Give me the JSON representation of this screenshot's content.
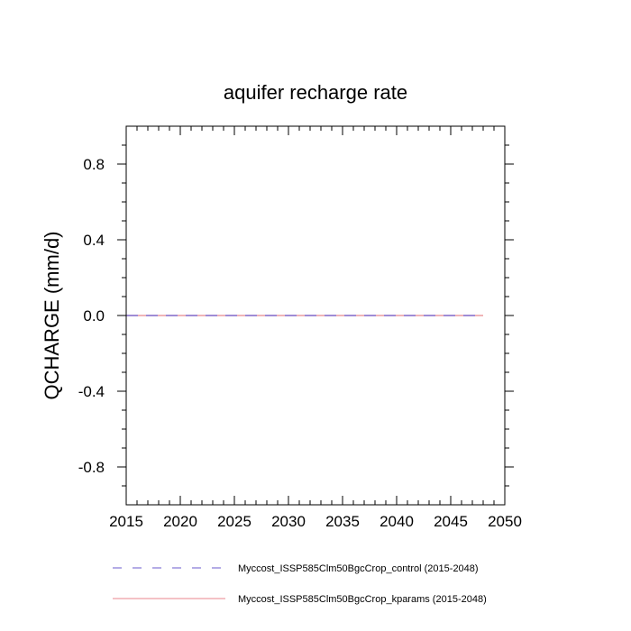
{
  "chart_data": {
    "type": "line",
    "title": "aquifer recharge rate",
    "xlabel": "",
    "ylabel": "QCHARGE  (mm/d)",
    "xlim": [
      2015,
      2050
    ],
    "ylim": [
      -1.0,
      1.0
    ],
    "xticks": [
      2015,
      2020,
      2025,
      2030,
      2035,
      2040,
      2045,
      2050
    ],
    "xtick_labels": [
      "2015",
      "2020",
      "2025",
      "2030",
      "2035",
      "2040",
      "2045",
      "2050"
    ],
    "yticks": [
      -0.8,
      -0.4,
      0.0,
      0.4,
      0.8
    ],
    "ytick_labels": [
      "-0.8",
      "-0.4",
      "0.0",
      "0.4",
      "0.8"
    ],
    "grid": false,
    "legend_position": "bottom",
    "series": [
      {
        "name": "Myccost_ISSP585Clm50BgcCrop_control (2015-2048)",
        "color": "#6a5acd",
        "dash": "dashed",
        "x": [
          2015,
          2048
        ],
        "y": [
          0.0,
          0.0
        ]
      },
      {
        "name": "Myccost_ISSP585Clm50BgcCrop_kparams (2015-2048)",
        "color": "#e8868c",
        "dash": "solid",
        "x": [
          2015,
          2048
        ],
        "y": [
          0.0,
          0.0
        ]
      }
    ]
  }
}
